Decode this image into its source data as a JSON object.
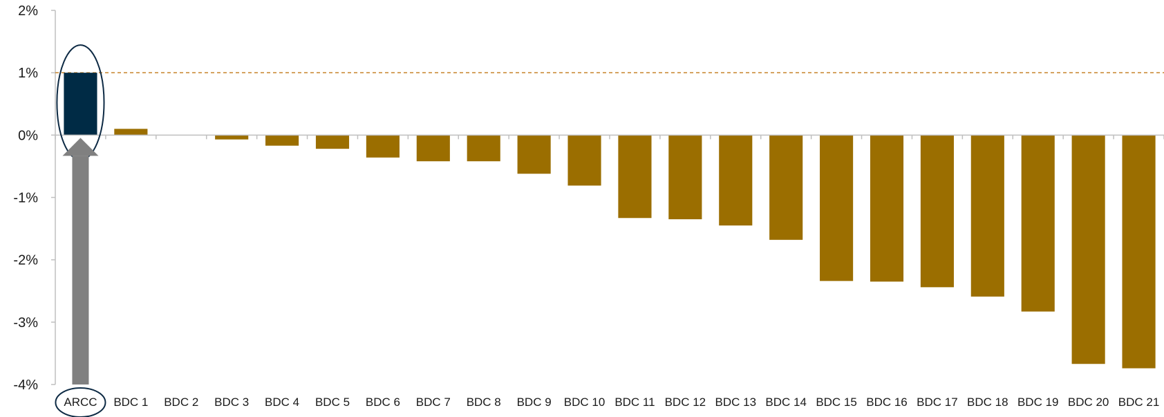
{
  "chart_data": {
    "type": "bar",
    "categories": [
      "ARCC",
      "BDC 1",
      "BDC 2",
      "BDC 3",
      "BDC 4",
      "BDC 5",
      "BDC 6",
      "BDC 7",
      "BDC 8",
      "BDC 9",
      "BDC 10",
      "BDC 11",
      "BDC 12",
      "BDC 13",
      "BDC 14",
      "BDC 15",
      "BDC 16",
      "BDC 17",
      "BDC 18",
      "BDC 19",
      "BDC 20",
      "BDC 21"
    ],
    "values": [
      1.0,
      0.1,
      0.0,
      -0.07,
      -0.17,
      -0.22,
      -0.36,
      -0.42,
      -0.42,
      -0.62,
      -0.81,
      -1.33,
      -1.35,
      -1.45,
      -1.68,
      -2.34,
      -2.35,
      -2.44,
      -2.59,
      -2.83,
      -3.67,
      -3.74
    ],
    "ylim": [
      -4,
      2
    ],
    "yticks": [
      2,
      1,
      0,
      -1,
      -2,
      -3,
      -4
    ],
    "ytick_labels": [
      "2%",
      "1%",
      "0%",
      "-1%",
      "-2%",
      "-3%",
      "-4%"
    ],
    "reference_line": 1,
    "highlight_category": "ARCC",
    "colors": {
      "highlight": "#002b45",
      "bars": "#9b6e00",
      "reference_line": "#c8842a",
      "axis": "#bfbfbf",
      "arrow": "#808080",
      "ellipse": "#0d2a44"
    }
  }
}
